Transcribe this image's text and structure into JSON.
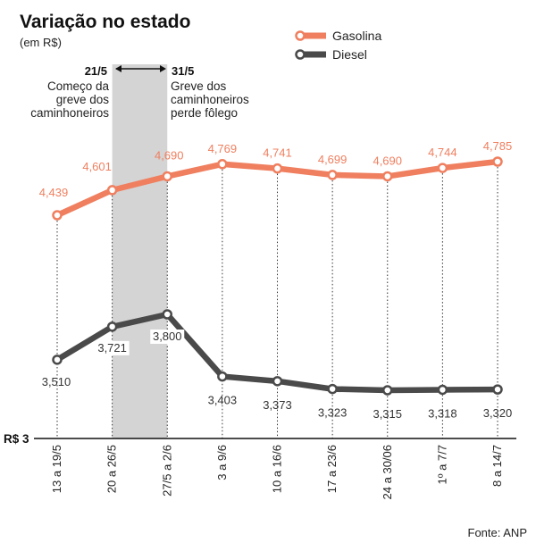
{
  "title": "Variação no estado",
  "subtitle": "(em R$)",
  "source": "Fonte: ANP",
  "base_label": "R$ 3",
  "colors": {
    "gasolina": "#ef7f5f",
    "diesel": "#4a4a4a",
    "highlight": "#d4d4d4"
  },
  "legend": [
    {
      "name": "Gasolina",
      "color": "#ef7f5f"
    },
    {
      "name": "Diesel",
      "color": "#4a4a4a"
    }
  ],
  "annotations": {
    "start_date": "21/5",
    "start_text": [
      "Começo da",
      "greve dos",
      "caminhoneiros"
    ],
    "end_date": "31/5",
    "end_text": [
      "Greve dos",
      "caminhoneiros",
      "perde fôlego"
    ]
  },
  "chart_data": {
    "type": "line",
    "title": "Variação no estado",
    "subtitle": "(em R$)",
    "categories": [
      "13 a 19/5",
      "20 a 26/5",
      "27/5 a 2/6",
      "3 a 9/6",
      "10 a 16/6",
      "17 a 23/6",
      "24 a 30/06",
      "1º a 7/7",
      "8 a 14/7"
    ],
    "series": [
      {
        "name": "Gasolina",
        "values": [
          4.439,
          4.601,
          4.69,
          4.769,
          4.741,
          4.699,
          4.69,
          4.744,
          4.785
        ],
        "labels": [
          "4,439",
          "4,601",
          "4,690",
          "4,769",
          "4,741",
          "4,699",
          "4,690",
          "4,744",
          "4,785"
        ]
      },
      {
        "name": "Diesel",
        "values": [
          3.51,
          3.721,
          3.8,
          3.403,
          3.373,
          3.323,
          3.315,
          3.318,
          3.32
        ],
        "labels": [
          "3,510",
          "3,721",
          "3,800",
          "3,403",
          "3,373",
          "3,323",
          "3,315",
          "3,318",
          "3,320"
        ]
      }
    ],
    "highlight_range": [
      "20 a 26/5",
      "27/5 a 2/6"
    ],
    "ylim": [
      3,
      4.9
    ],
    "grid": "vertical dotted lines per category",
    "legend_position": "top-right"
  }
}
